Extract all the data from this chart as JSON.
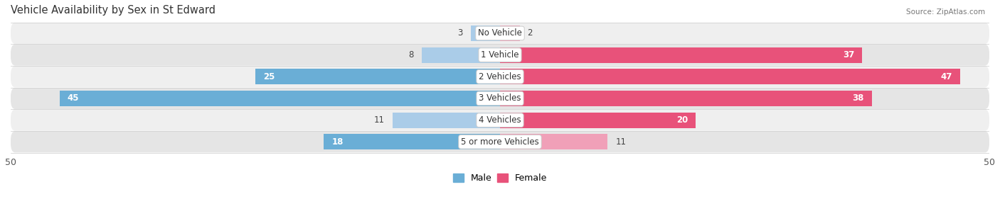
{
  "title": "Vehicle Availability by Sex in St Edward",
  "source": "Source: ZipAtlas.com",
  "categories": [
    "No Vehicle",
    "1 Vehicle",
    "2 Vehicles",
    "3 Vehicles",
    "4 Vehicles",
    "5 or more Vehicles"
  ],
  "male_values": [
    3,
    8,
    25,
    45,
    11,
    18
  ],
  "female_values": [
    2,
    37,
    47,
    38,
    20,
    11
  ],
  "male_color_strong": "#6aaed6",
  "male_color_light": "#aacce8",
  "female_color_strong": "#e8527a",
  "female_color_light": "#f0a0b8",
  "row_bg_color_odd": "#efefef",
  "row_bg_color_even": "#e5e5e5",
  "xlim": 50,
  "bar_height": 0.72,
  "title_fontsize": 10.5,
  "label_fontsize": 8.5,
  "tick_fontsize": 9,
  "legend_fontsize": 9,
  "strong_threshold": 15
}
